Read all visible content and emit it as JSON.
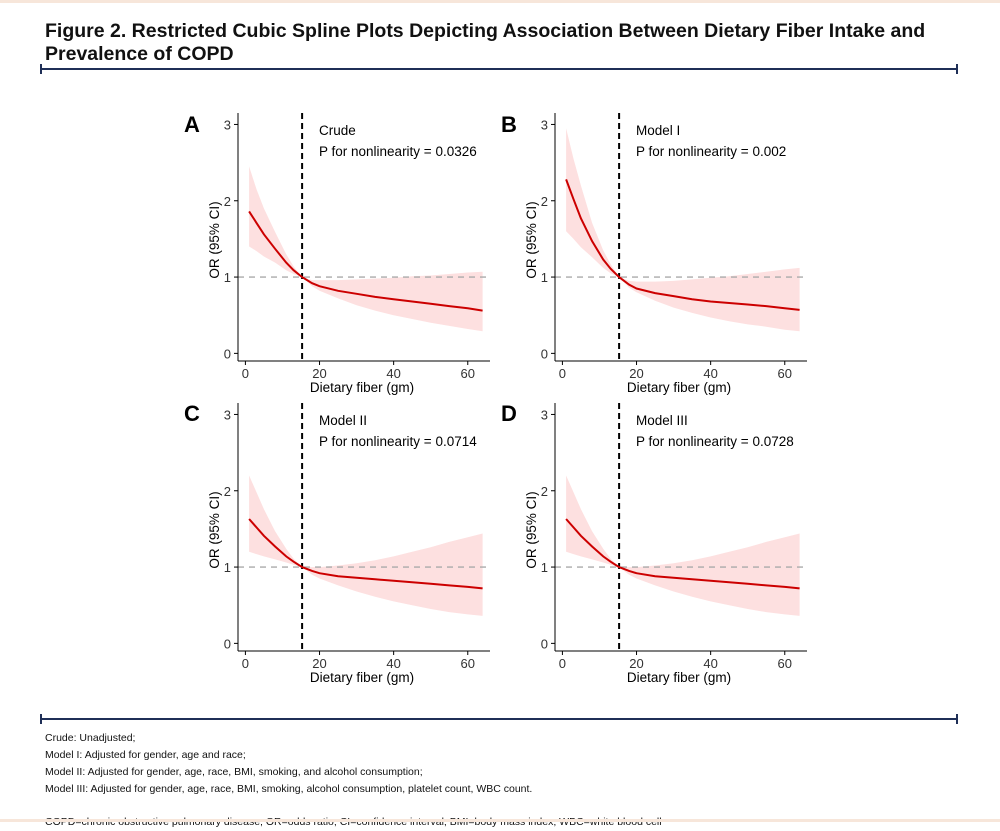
{
  "figure": {
    "title": "Figure 2. Restricted Cubic Spline Plots Depicting Association Between Dietary Fiber Intake and Prevalence of COPD"
  },
  "footnotes": {
    "crude": "Crude: Unadjusted;",
    "model1": "Model I: Adjusted for gender, age and race;",
    "model2": "Model II: Adjusted for gender, age, race, BMI, smoking, and alcohol consumption;",
    "model3": "Model III: Adjusted for gender, age, race, BMI, smoking, alcohol consumption, platelet count, WBC count.",
    "abbreviations": "COPD=chronic obstructive pulmonary disease; OR=odds ratio; CI=confidence interval; BMI=body mass index; WBC=white blood cell"
  },
  "colors": {
    "curve": "#cc0000",
    "ci_band": "#fde0e0",
    "reference_line": "#aaaaaa",
    "knot_line": "#000000",
    "divider": "#1f2f57"
  },
  "chart_data": [
    {
      "panel": "A",
      "type": "line",
      "annotation": [
        "Crude",
        "P for nonlinearity = 0.0326"
      ],
      "xlabel": "Dietary fiber (gm)",
      "ylabel": "OR (95% CI)",
      "xlim": [
        -2,
        66
      ],
      "ylim": [
        -0.1,
        3.15
      ],
      "xticks": [
        0,
        20,
        40,
        60
      ],
      "yticks": [
        0,
        1,
        2,
        3
      ],
      "reference_y": 1,
      "vertical_line_x": 15.3,
      "x": [
        1,
        3,
        5,
        8,
        11,
        13,
        15.3,
        18,
        20,
        25,
        30,
        35,
        40,
        45,
        50,
        55,
        60,
        64
      ],
      "or": [
        1.86,
        1.71,
        1.56,
        1.37,
        1.19,
        1.09,
        1.0,
        0.92,
        0.88,
        0.82,
        0.78,
        0.74,
        0.71,
        0.68,
        0.65,
        0.62,
        0.59,
        0.56
      ],
      "lower": [
        1.4,
        1.34,
        1.27,
        1.19,
        1.09,
        1.04,
        1.0,
        0.88,
        0.82,
        0.72,
        0.63,
        0.56,
        0.5,
        0.45,
        0.4,
        0.36,
        0.32,
        0.29
      ],
      "upper": [
        2.45,
        2.15,
        1.9,
        1.59,
        1.3,
        1.14,
        1.0,
        0.96,
        0.96,
        0.96,
        0.97,
        0.98,
        0.99,
        1.01,
        1.02,
        1.04,
        1.06,
        1.07
      ]
    },
    {
      "panel": "B",
      "type": "line",
      "annotation": [
        "Model I",
        "P for nonlinearity = 0.002"
      ],
      "xlabel": "Dietary fiber (gm)",
      "ylabel": "OR (95% CI)",
      "xlim": [
        -2,
        66
      ],
      "ylim": [
        -0.1,
        3.15
      ],
      "xticks": [
        0,
        20,
        40,
        60
      ],
      "yticks": [
        0,
        1,
        2,
        3
      ],
      "reference_y": 1,
      "vertical_line_x": 15.3,
      "x": [
        1,
        3,
        5,
        8,
        11,
        13,
        15.3,
        18,
        20,
        25,
        30,
        35,
        40,
        45,
        50,
        55,
        60,
        64
      ],
      "or": [
        2.28,
        2.02,
        1.77,
        1.47,
        1.23,
        1.11,
        1.0,
        0.9,
        0.85,
        0.79,
        0.75,
        0.71,
        0.68,
        0.66,
        0.64,
        0.62,
        0.59,
        0.57
      ],
      "lower": [
        1.6,
        1.5,
        1.39,
        1.26,
        1.12,
        1.05,
        1.0,
        0.86,
        0.8,
        0.69,
        0.6,
        0.53,
        0.47,
        0.42,
        0.38,
        0.35,
        0.31,
        0.29
      ],
      "upper": [
        2.95,
        2.55,
        2.2,
        1.71,
        1.35,
        1.17,
        1.0,
        0.95,
        0.94,
        0.94,
        0.95,
        0.97,
        0.99,
        1.01,
        1.04,
        1.07,
        1.1,
        1.12
      ]
    },
    {
      "panel": "C",
      "type": "line",
      "annotation": [
        "Model II",
        "P for nonlinearity = 0.0714"
      ],
      "xlabel": "Dietary fiber (gm)",
      "ylabel": "OR (95% CI)",
      "xlim": [
        -2,
        66
      ],
      "ylim": [
        -0.1,
        3.15
      ],
      "xticks": [
        0,
        20,
        40,
        60
      ],
      "yticks": [
        0,
        1,
        2,
        3
      ],
      "reference_y": 1,
      "vertical_line_x": 15.3,
      "x": [
        1,
        3,
        5,
        8,
        11,
        13,
        15.3,
        18,
        20,
        25,
        30,
        35,
        40,
        45,
        50,
        55,
        60,
        64
      ],
      "or": [
        1.63,
        1.52,
        1.41,
        1.27,
        1.14,
        1.07,
        1.0,
        0.95,
        0.92,
        0.88,
        0.86,
        0.84,
        0.82,
        0.8,
        0.78,
        0.76,
        0.74,
        0.72
      ],
      "lower": [
        1.2,
        1.17,
        1.14,
        1.1,
        1.06,
        1.03,
        1.0,
        0.9,
        0.85,
        0.76,
        0.68,
        0.61,
        0.55,
        0.5,
        0.45,
        0.41,
        0.38,
        0.36
      ],
      "upper": [
        2.2,
        1.98,
        1.76,
        1.47,
        1.24,
        1.11,
        1.0,
        1.0,
        1.0,
        1.02,
        1.05,
        1.09,
        1.14,
        1.2,
        1.26,
        1.33,
        1.39,
        1.44
      ]
    },
    {
      "panel": "D",
      "type": "line",
      "annotation": [
        "Model III",
        "P for nonlinearity = 0.0728"
      ],
      "xlabel": "Dietary fiber (gm)",
      "ylabel": "OR (95% CI)",
      "xlim": [
        -2,
        66
      ],
      "ylim": [
        -0.1,
        3.15
      ],
      "xticks": [
        0,
        20,
        40,
        60
      ],
      "yticks": [
        0,
        1,
        2,
        3
      ],
      "reference_y": 1,
      "vertical_line_x": 15.3,
      "x": [
        1,
        3,
        5,
        8,
        11,
        13,
        15.3,
        18,
        20,
        25,
        30,
        35,
        40,
        45,
        50,
        55,
        60,
        64
      ],
      "or": [
        1.63,
        1.52,
        1.41,
        1.27,
        1.14,
        1.07,
        1.0,
        0.95,
        0.92,
        0.88,
        0.86,
        0.84,
        0.82,
        0.8,
        0.78,
        0.76,
        0.74,
        0.72
      ],
      "lower": [
        1.2,
        1.17,
        1.14,
        1.1,
        1.06,
        1.03,
        1.0,
        0.9,
        0.85,
        0.76,
        0.68,
        0.61,
        0.55,
        0.5,
        0.45,
        0.41,
        0.38,
        0.36
      ],
      "upper": [
        2.2,
        1.98,
        1.76,
        1.47,
        1.24,
        1.11,
        1.0,
        1.0,
        1.0,
        1.02,
        1.05,
        1.09,
        1.14,
        1.2,
        1.26,
        1.33,
        1.39,
        1.44
      ]
    }
  ]
}
